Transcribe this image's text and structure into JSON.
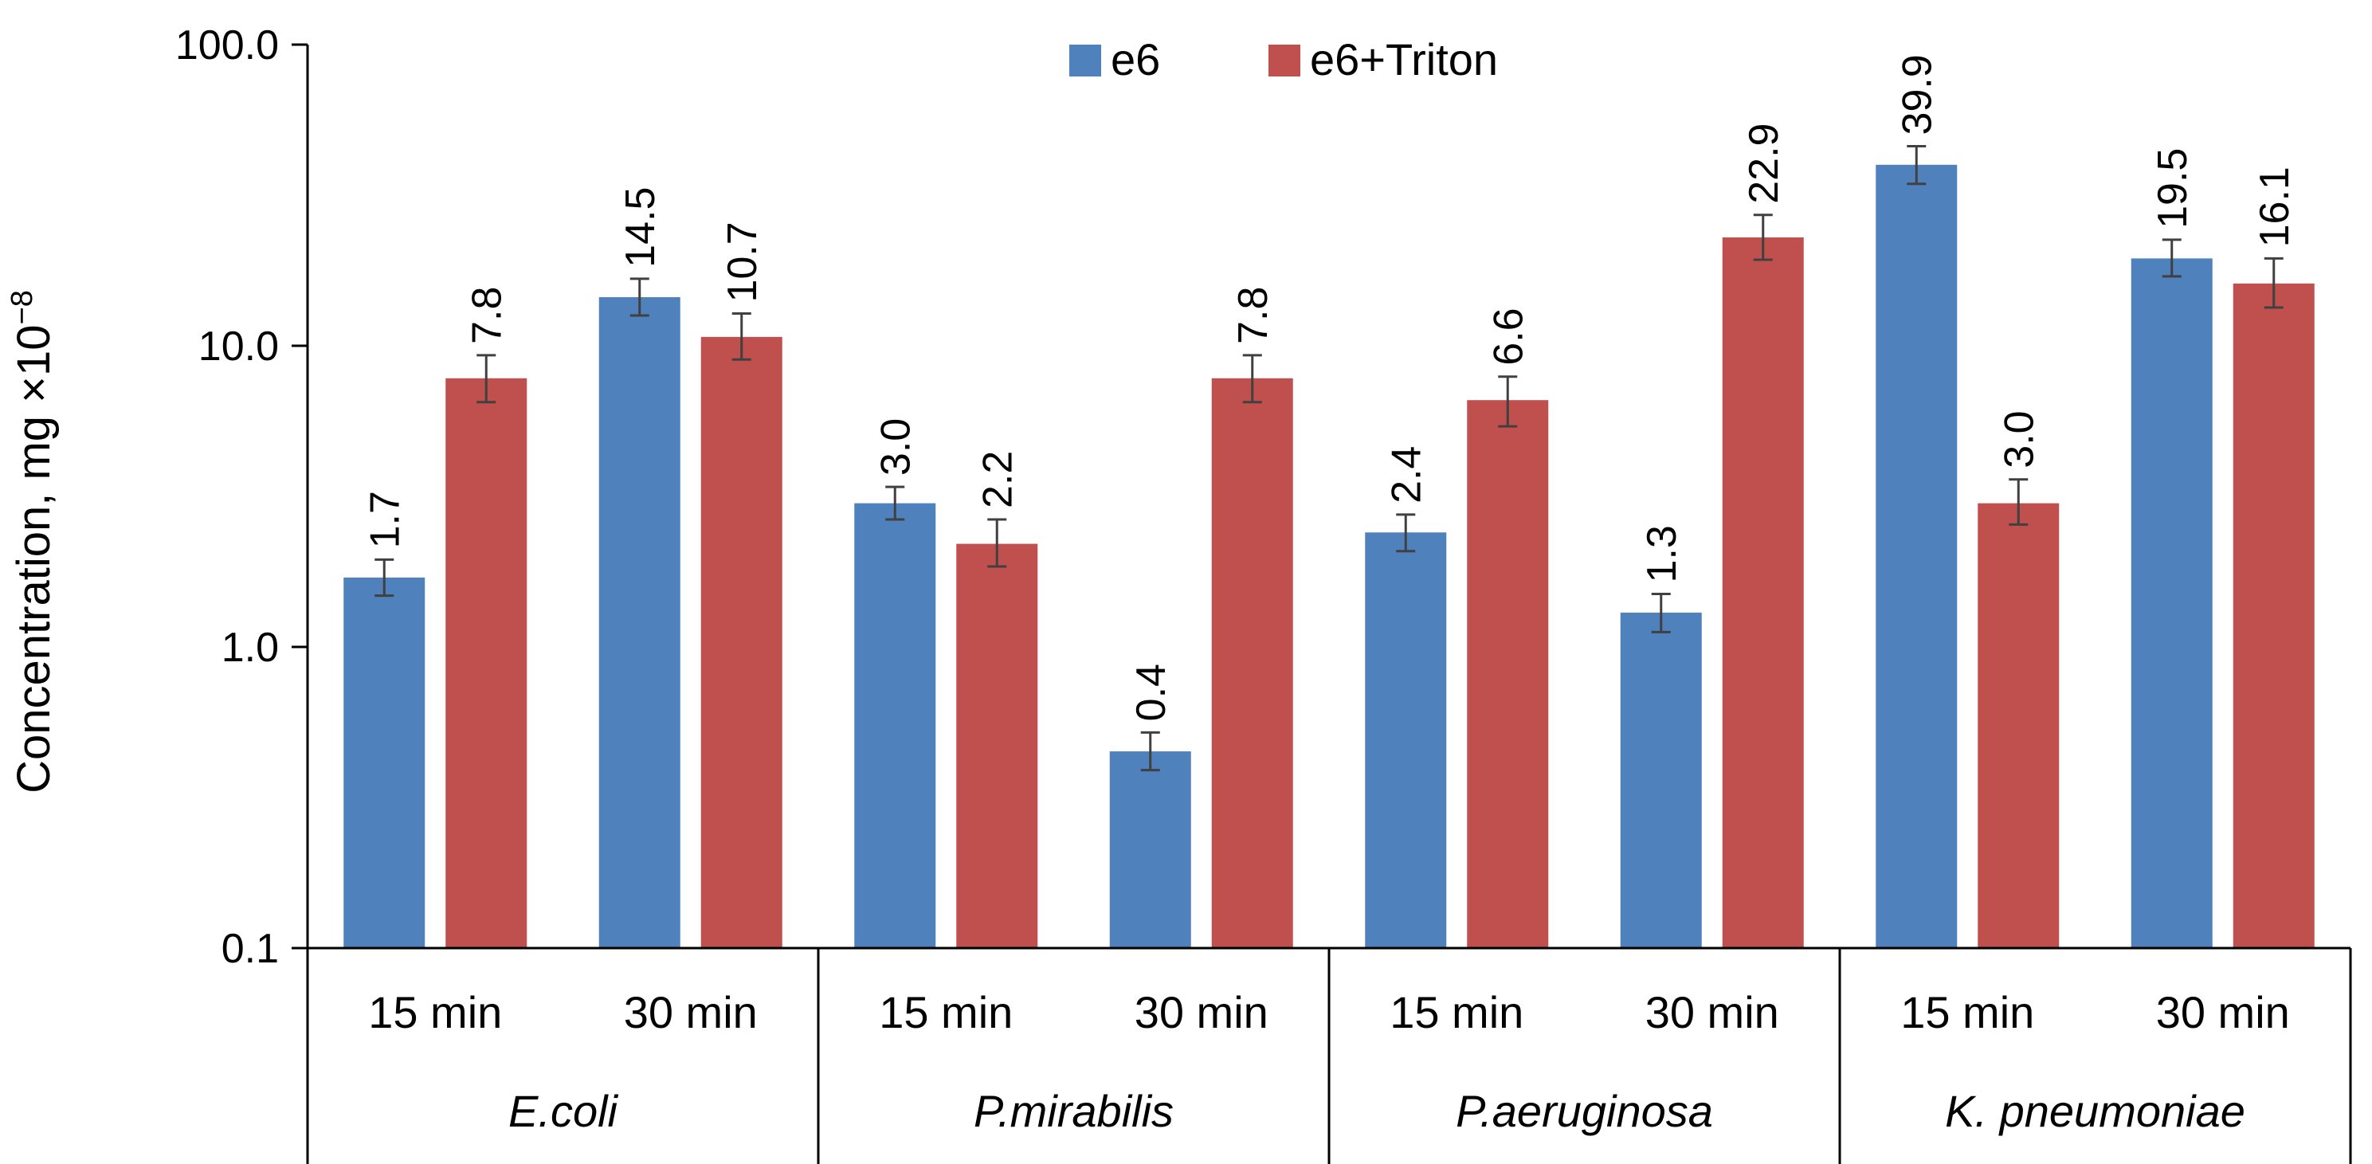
{
  "chart_data": {
    "type": "bar",
    "ylabel": "Concentration, mg ×10",
    "ylabel_superscript": "−8",
    "y_scale": "log",
    "ylim": [
      0.1,
      100
    ],
    "y_ticks": [
      "0.1",
      "1.0",
      "10.0",
      "100.0"
    ],
    "y_tick_values": [
      0.1,
      1,
      10,
      100
    ],
    "grid": false,
    "legend_position": "top-center",
    "groups": [
      {
        "name": "E.coli",
        "categories": [
          "15 min",
          "30 min"
        ]
      },
      {
        "name": "P.mirabilis",
        "categories": [
          "15 min",
          "30 min"
        ]
      },
      {
        "name": "P.aeruginosa",
        "categories": [
          "15 min",
          "30 min"
        ]
      },
      {
        "name": "K. pneumoniae",
        "categories": [
          "15 min",
          "30 min"
        ]
      }
    ],
    "series": [
      {
        "name": "e6",
        "color": "#4f81bd",
        "values": [
          1.7,
          14.5,
          3.0,
          0.45,
          2.4,
          1.3,
          39.9,
          19.5
        ],
        "labels": [
          "1.7",
          "14.5",
          "3.0",
          "0.4",
          "2.4",
          "1.3",
          "39.9",
          "19.5"
        ],
        "error_low": [
          1.48,
          12.6,
          2.65,
          0.39,
          2.08,
          1.12,
          34.5,
          17.0
        ],
        "error_high": [
          1.95,
          16.7,
          3.4,
          0.52,
          2.75,
          1.5,
          46.0,
          22.5
        ]
      },
      {
        "name": "e6+Triton",
        "color": "#c0504d",
        "values": [
          7.8,
          10.7,
          2.2,
          7.8,
          6.6,
          22.9,
          3.0,
          16.1
        ],
        "labels": [
          "7.8",
          "10.7",
          "2.2",
          "7.8",
          "6.6",
          "22.9",
          "3.0",
          "16.1"
        ],
        "error_low": [
          6.5,
          9.0,
          1.85,
          6.5,
          5.4,
          19.3,
          2.55,
          13.4
        ],
        "error_high": [
          9.3,
          12.8,
          2.65,
          9.3,
          7.9,
          27.2,
          3.6,
          19.5
        ]
      }
    ]
  }
}
